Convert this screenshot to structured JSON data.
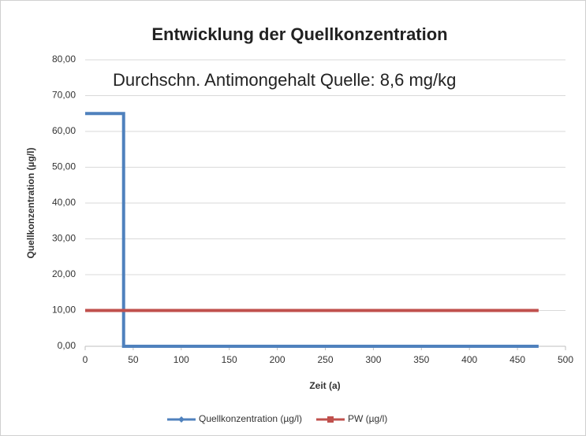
{
  "chart_data": {
    "type": "line",
    "title": "Entwicklung der Quellkonzentration",
    "annotation": "Durchschn. Antimongehalt Quelle: 8,6 mg/kg",
    "xlabel": "Zeit (a)",
    "ylabel": "Quellkonzentration (µg/l)",
    "series": [
      {
        "name": "Quellkonzentration (µg/l)",
        "color": "#4f81bd",
        "x": [
          0,
          40,
          40,
          472
        ],
        "values": [
          65,
          65,
          0,
          0
        ]
      },
      {
        "name": "PW (µg/l)",
        "color": "#c0504d",
        "x": [
          0,
          472
        ],
        "values": [
          10,
          10
        ]
      }
    ],
    "xlim": [
      0,
      500
    ],
    "xticks": [
      0,
      50,
      100,
      150,
      200,
      250,
      300,
      350,
      400,
      450,
      500
    ],
    "ylim": [
      0,
      80
    ],
    "yticks": [
      {
        "value": 0,
        "label": "0,00"
      },
      {
        "value": 10,
        "label": "10,00"
      },
      {
        "value": 20,
        "label": "20,00"
      },
      {
        "value": 30,
        "label": "30,00"
      },
      {
        "value": 40,
        "label": "40,00"
      },
      {
        "value": 50,
        "label": "50,00"
      },
      {
        "value": 60,
        "label": "60,00"
      },
      {
        "value": 70,
        "label": "70,00"
      },
      {
        "value": 80,
        "label": "80,00"
      }
    ],
    "grid": true,
    "legend": "bottom"
  }
}
